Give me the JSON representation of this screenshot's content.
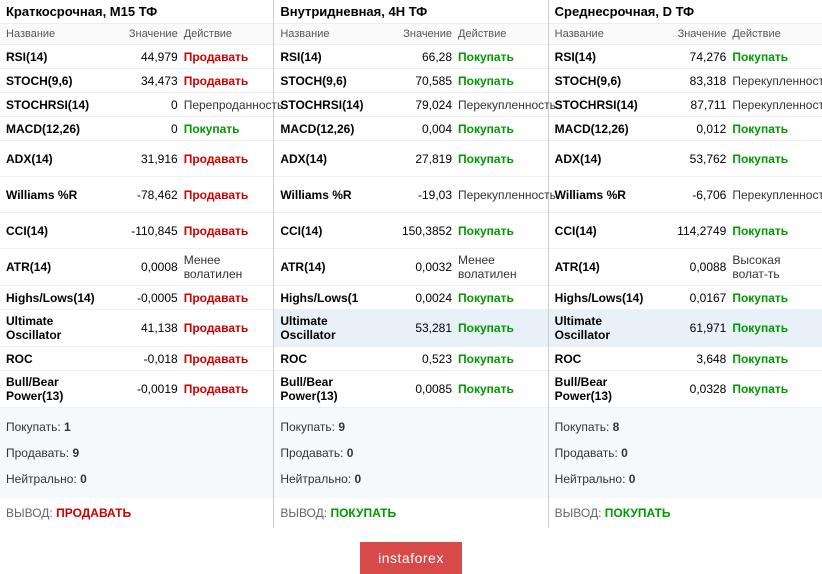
{
  "colors": {
    "buy": "#009900",
    "sell": "#cc0000",
    "neutral": "#333333",
    "footer_bg": "#d84a4a"
  },
  "headers": {
    "name": "Название",
    "value": "Значение",
    "action": "Действие"
  },
  "summary_labels": {
    "buy": "Покупать:",
    "sell": "Продавать:",
    "neutral": "Нейтрально:"
  },
  "verdict_label": "ВЫВОД:",
  "footer_text": "instaforex",
  "panels": [
    {
      "title": "Краткосрочная, M15 ТФ",
      "rows": [
        {
          "name": "RSI(14)",
          "value": "44,979",
          "action": "Продавать",
          "action_type": "sell",
          "tall": false
        },
        {
          "name": "STOCH(9,6)",
          "value": "34,473",
          "action": "Продавать",
          "action_type": "sell",
          "tall": false
        },
        {
          "name": "STOCHRSI(14)",
          "value": "0",
          "action": "Перепроданность",
          "action_type": "neutral",
          "tall": false
        },
        {
          "name": "MACD(12,26)",
          "value": "0",
          "action": "Покупать",
          "action_type": "buy",
          "tall": false
        },
        {
          "name": "ADX(14)",
          "value": "31,916",
          "action": "Продавать",
          "action_type": "sell",
          "tall": true
        },
        {
          "name": "Williams %R",
          "value": "-78,462",
          "action": "Продавать",
          "action_type": "sell",
          "tall": true
        },
        {
          "name": "CCI(14)",
          "value": "-110,845",
          "action": "Продавать",
          "action_type": "sell",
          "tall": true
        },
        {
          "name": "ATR(14)",
          "value": "0,0008",
          "action": "Менее волатилен",
          "action_type": "neutral",
          "tall": false
        },
        {
          "name": "Highs/Lows(14)",
          "value": "-0,0005",
          "action": "Продавать",
          "action_type": "sell",
          "tall": false
        },
        {
          "name": "Ultimate Oscillator",
          "value": "41,138",
          "action": "Продавать",
          "action_type": "sell",
          "tall": true,
          "highlight": false
        },
        {
          "name": "ROC",
          "value": "-0,018",
          "action": "Продавать",
          "action_type": "sell",
          "tall": false
        },
        {
          "name": "Bull/Bear Power(13)",
          "value": "-0,0019",
          "action": "Продавать",
          "action_type": "sell",
          "tall": true
        }
      ],
      "summary": {
        "buy": "1",
        "sell": "9",
        "neutral": "0"
      },
      "verdict": {
        "text": "ПРОДАВАТЬ",
        "type": "sell"
      }
    },
    {
      "title": "Внутридневная, 4H ТФ",
      "rows": [
        {
          "name": "RSI(14)",
          "value": "66,28",
          "action": "Покупать",
          "action_type": "buy",
          "tall": false
        },
        {
          "name": "STOCH(9,6)",
          "value": "70,585",
          "action": "Покупать",
          "action_type": "buy",
          "tall": false
        },
        {
          "name": "STOCHRSI(14)",
          "value": "79,024",
          "action": "Перекупленность",
          "action_type": "neutral",
          "tall": false
        },
        {
          "name": "MACD(12,26)",
          "value": "0,004",
          "action": "Покупать",
          "action_type": "buy",
          "tall": false
        },
        {
          "name": "ADX(14)",
          "value": "27,819",
          "action": "Покупать",
          "action_type": "buy",
          "tall": true
        },
        {
          "name": "Williams %R",
          "value": "-19,03",
          "action": "Перекупленность",
          "action_type": "neutral",
          "tall": true
        },
        {
          "name": "CCI(14)",
          "value": "150,3852",
          "action": "Покупать",
          "action_type": "buy",
          "tall": true
        },
        {
          "name": "ATR(14)",
          "value": "0,0032",
          "action": "Менее волатилен",
          "action_type": "neutral",
          "tall": false
        },
        {
          "name": "Highs/Lows(1",
          "value": "0,0024",
          "action": "Покупать",
          "action_type": "buy",
          "tall": false
        },
        {
          "name": "Ultimate Oscillator",
          "value": "53,281",
          "action": "Покупать",
          "action_type": "buy",
          "tall": true,
          "highlight": true
        },
        {
          "name": "ROC",
          "value": "0,523",
          "action": "Покупать",
          "action_type": "buy",
          "tall": false
        },
        {
          "name": "Bull/Bear Power(13)",
          "value": "0,0085",
          "action": "Покупать",
          "action_type": "buy",
          "tall": true
        }
      ],
      "summary": {
        "buy": "9",
        "sell": "0",
        "neutral": "0"
      },
      "verdict": {
        "text": "ПОКУПАТЬ",
        "type": "buy"
      }
    },
    {
      "title": "Среднесрочная, D ТФ",
      "rows": [
        {
          "name": "RSI(14)",
          "value": "74,276",
          "action": "Покупать",
          "action_type": "buy",
          "tall": false
        },
        {
          "name": "STOCH(9,6)",
          "value": "83,318",
          "action": "Перекупленность",
          "action_type": "neutral",
          "tall": false
        },
        {
          "name": "STOCHRSI(14)",
          "value": "87,711",
          "action": "Перекупленность",
          "action_type": "neutral",
          "tall": false
        },
        {
          "name": "MACD(12,26)",
          "value": "0,012",
          "action": "Покупать",
          "action_type": "buy",
          "tall": false
        },
        {
          "name": "ADX(14)",
          "value": "53,762",
          "action": "Покупать",
          "action_type": "buy",
          "tall": true
        },
        {
          "name": "Williams %R",
          "value": "-6,706",
          "action": "Перекупленность",
          "action_type": "neutral",
          "tall": true
        },
        {
          "name": "CCI(14)",
          "value": "114,2749",
          "action": "Покупать",
          "action_type": "buy",
          "tall": true
        },
        {
          "name": "ATR(14)",
          "value": "0,0088",
          "action": "Высокая волат-ть",
          "action_type": "neutral",
          "tall": false
        },
        {
          "name": "Highs/Lows(14)",
          "value": "0,0167",
          "action": "Покупать",
          "action_type": "buy",
          "tall": false
        },
        {
          "name": "Ultimate Oscillator",
          "value": "61,971",
          "action": "Покупать",
          "action_type": "buy",
          "tall": true,
          "highlight": true
        },
        {
          "name": "ROC",
          "value": "3,648",
          "action": "Покупать",
          "action_type": "buy",
          "tall": false
        },
        {
          "name": "Bull/Bear Power(13)",
          "value": "0,0328",
          "action": "Покупать",
          "action_type": "buy",
          "tall": true
        }
      ],
      "summary": {
        "buy": "8",
        "sell": "0",
        "neutral": "0"
      },
      "verdict": {
        "text": "ПОКУПАТЬ",
        "type": "buy"
      }
    }
  ]
}
